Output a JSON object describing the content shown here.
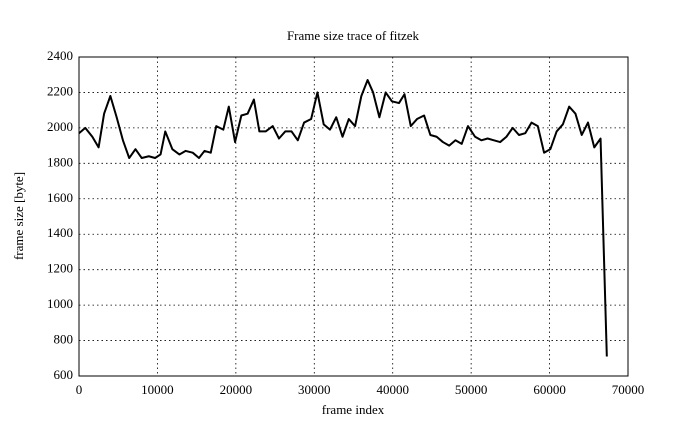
{
  "chart_data": {
    "type": "line",
    "title": "Frame size trace of fitzek",
    "x_label": "frame index",
    "y_label": "frame size [byte]",
    "x": [
      0,
      800,
      1700,
      2500,
      3200,
      4000,
      4800,
      5600,
      6400,
      7200,
      8000,
      8900,
      9700,
      10400,
      11000,
      11900,
      12800,
      13600,
      14500,
      15300,
      16000,
      16800,
      17500,
      18400,
      19100,
      19900,
      20700,
      21500,
      22300,
      23000,
      23800,
      24700,
      25500,
      26300,
      27100,
      27900,
      28700,
      29600,
      30400,
      31200,
      32000,
      32800,
      33600,
      34400,
      35200,
      36000,
      36800,
      37500,
      38300,
      39100,
      39900,
      40800,
      41500,
      42300,
      43100,
      44000,
      44800,
      45600,
      46400,
      47200,
      48000,
      48800,
      49600,
      50500,
      51300,
      52100,
      52900,
      53700,
      54500,
      55300,
      56100,
      56900,
      57700,
      58500,
      59300,
      60100,
      60900,
      61700,
      62500,
      63300,
      64100,
      64900,
      65700,
      66500,
      67300
    ],
    "series": [
      {
        "name": "frame size",
        "color": "#000000",
        "values": [
          1970,
          2000,
          1950,
          1890,
          2080,
          2180,
          2060,
          1930,
          1830,
          1880,
          1830,
          1840,
          1830,
          1850,
          1980,
          1880,
          1850,
          1870,
          1860,
          1830,
          1870,
          1860,
          2010,
          1990,
          2120,
          1920,
          2070,
          2080,
          2160,
          1980,
          1980,
          2010,
          1940,
          1980,
          1980,
          1930,
          2030,
          2050,
          2200,
          2020,
          1990,
          2060,
          1950,
          2050,
          2010,
          2180,
          2270,
          2200,
          2060,
          2200,
          2150,
          2140,
          2190,
          2010,
          2050,
          2070,
          1960,
          1950,
          1920,
          1900,
          1930,
          1910,
          2010,
          1950,
          1930,
          1940,
          1930,
          1920,
          1950,
          2000,
          1960,
          1970,
          2030,
          2010,
          1860,
          1880,
          1980,
          2020,
          2120,
          2080,
          1960,
          2030,
          1890,
          1940,
          710
        ]
      }
    ],
    "xlim": [
      0,
      70000
    ],
    "xticks": [
      0,
      10000,
      20000,
      30000,
      40000,
      50000,
      60000,
      70000
    ],
    "ylim": [
      600,
      2400
    ],
    "yticks": [
      600,
      800,
      1000,
      1200,
      1400,
      1600,
      1800,
      2000,
      2200,
      2400
    ],
    "grid": true
  }
}
